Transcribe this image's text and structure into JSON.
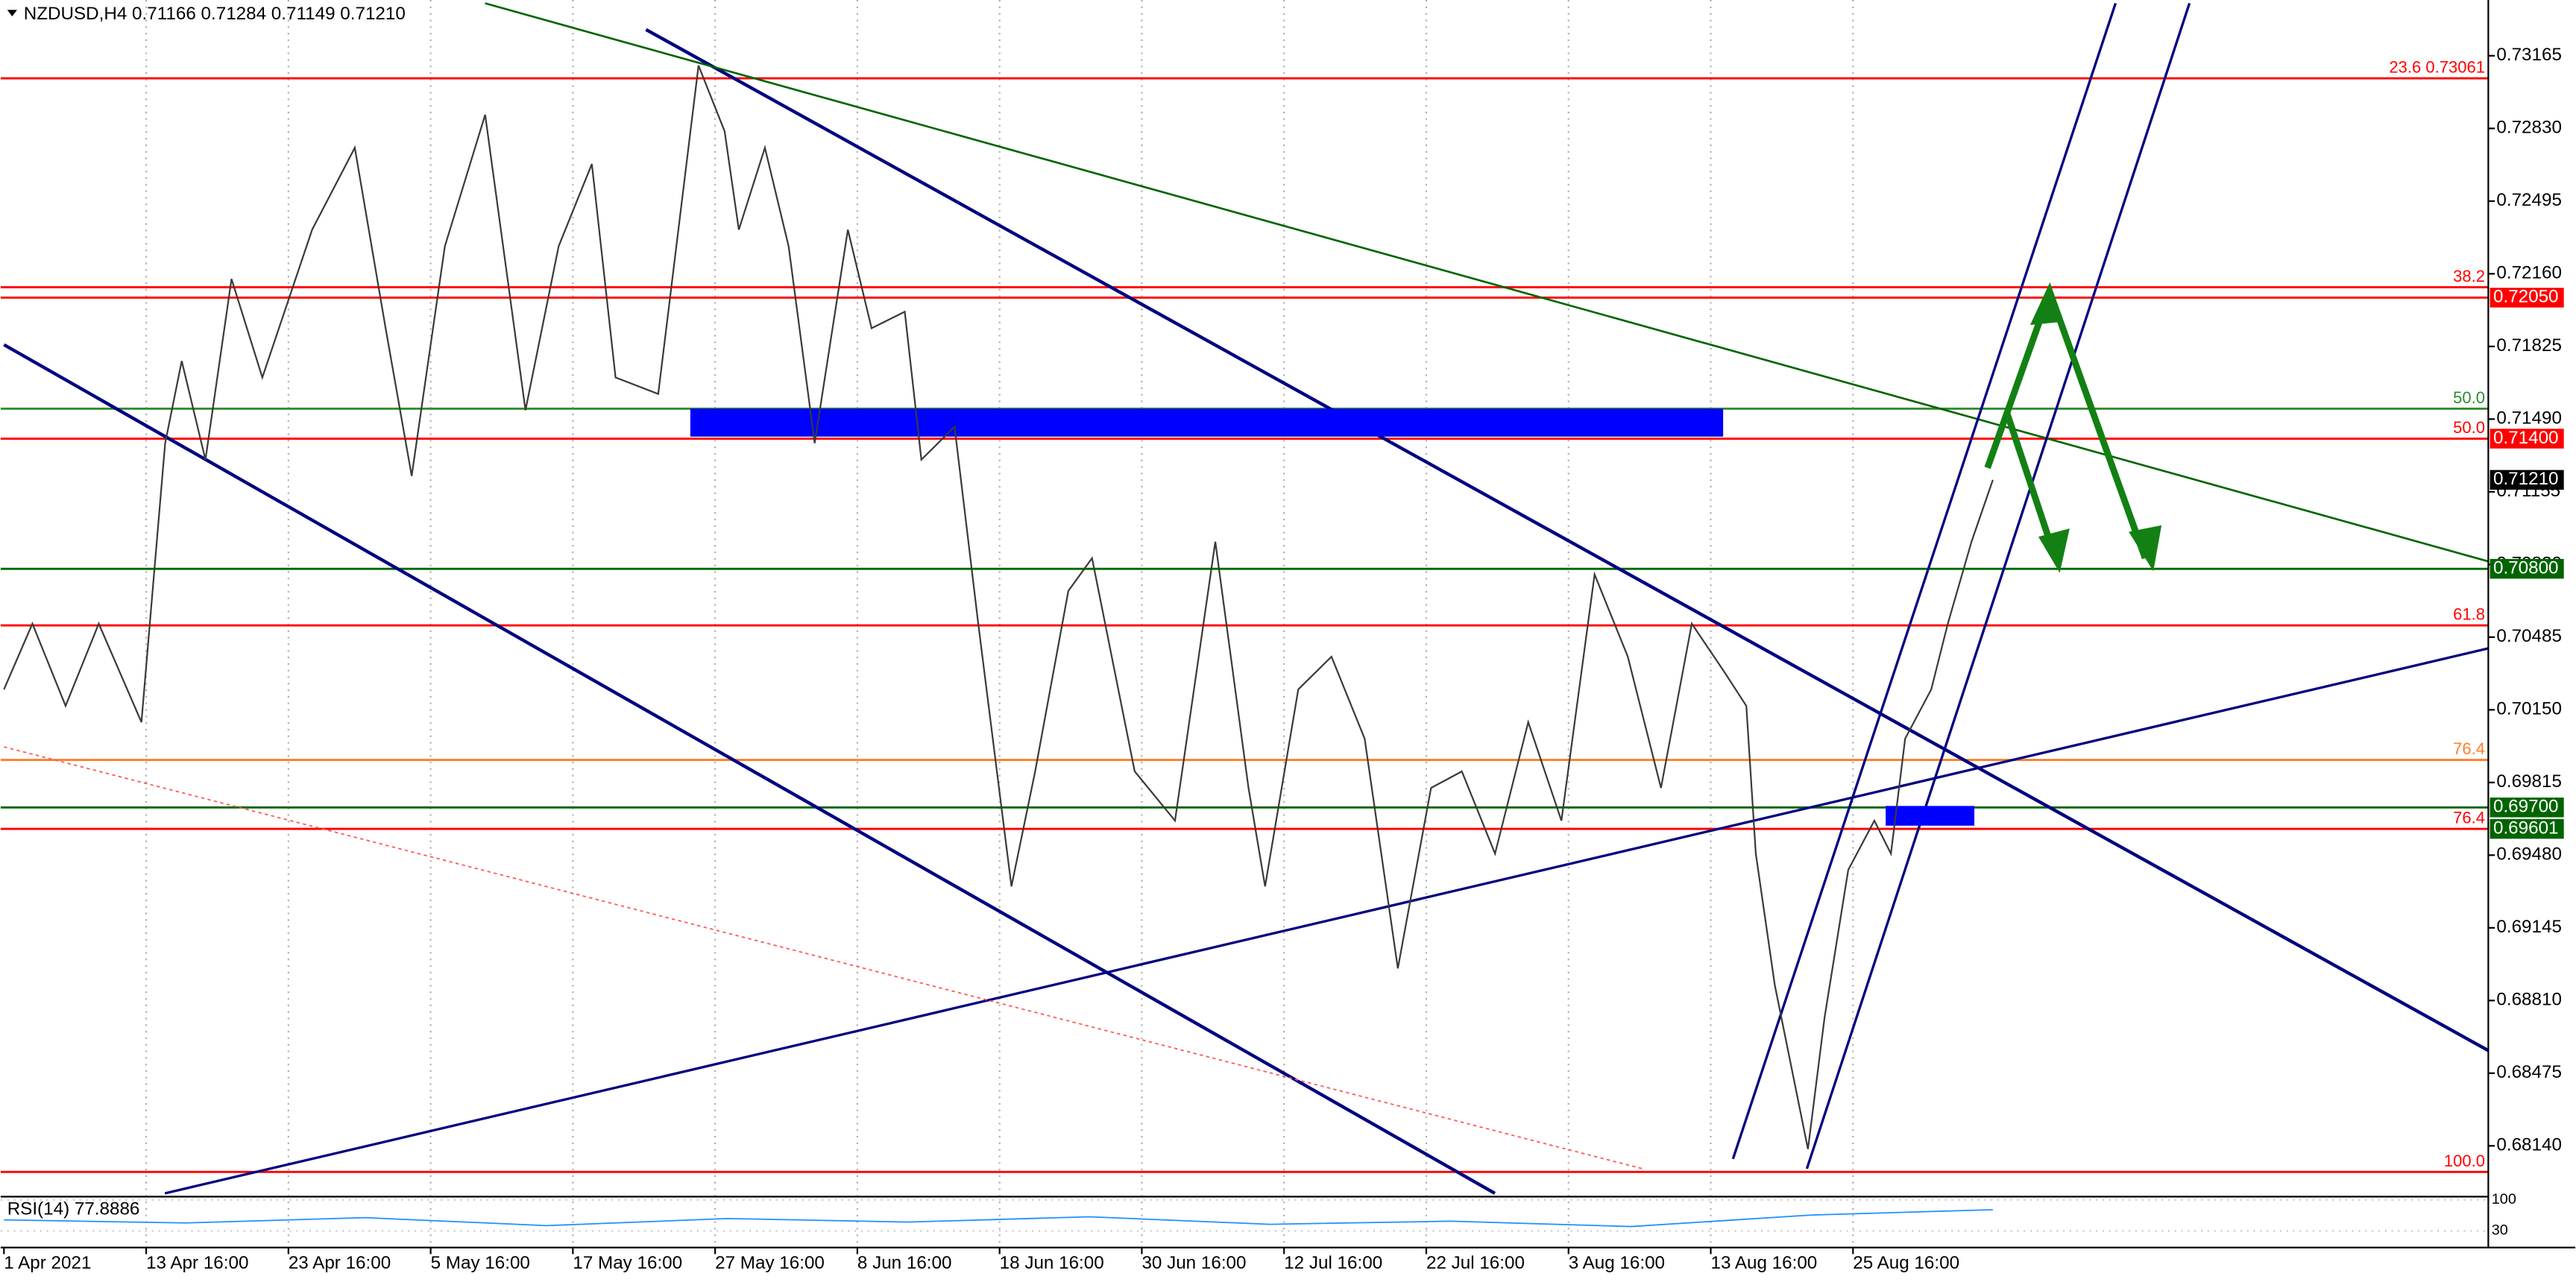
{
  "chart_data": {
    "type": "line",
    "title": "NZDUSD,H4  0.71166 0.71284 0.71149 0.71210",
    "color": "#3a3a3a",
    "x": [
      0,
      12,
      26,
      40,
      58,
      68,
      75,
      85,
      96,
      109,
      130,
      148,
      161,
      172,
      186,
      203,
      220,
      234,
      248,
      258,
      276,
      293,
      304,
      310,
      321,
      331,
      342,
      356,
      366,
      380,
      387,
      401,
      411,
      418,
      425,
      435,
      449,
      459,
      477,
      494,
      511,
      525,
      532,
      546,
      560,
      574,
      588,
      602,
      615,
      629,
      643,
      657,
      671,
      685,
      699,
      712,
      726,
      735,
      739,
      747,
      761,
      768,
      778,
      789,
      796,
      802,
      813,
      820,
      830,
      839
    ],
    "values": [
      0.70244,
      0.70547,
      0.70168,
      0.70547,
      0.70093,
      0.71379,
      0.71758,
      0.71303,
      0.72136,
      0.71682,
      0.72363,
      0.72741,
      0.71909,
      0.71228,
      0.72287,
      0.72893,
      0.71531,
      0.72287,
      0.72666,
      0.71682,
      0.71606,
      0.7312,
      0.72817,
      0.72363,
      0.72741,
      0.72287,
      0.71379,
      0.72363,
      0.71909,
      0.71985,
      0.71303,
      0.71455,
      0.70547,
      0.69941,
      0.69336,
      0.69866,
      0.70698,
      0.70849,
      0.69866,
      0.69639,
      0.70925,
      0.6979,
      0.69336,
      0.70244,
      0.70395,
      0.70017,
      0.68958,
      0.6979,
      0.69866,
      0.69487,
      0.70093,
      0.69639,
      0.70774,
      0.70395,
      0.6979,
      0.70547,
      0.7032,
      0.70168,
      0.69487,
      0.68882,
      0.68125,
      0.68731,
      0.69412,
      0.69639,
      0.69487,
      0.70017,
      0.70244,
      0.70547,
      0.70925,
      0.7121
    ],
    "xlim": [
      0,
      1048
    ],
    "xticks": [
      {
        "value": 0,
        "label": "1 Apr 2021"
      },
      {
        "value": 60,
        "label": "13 Apr 16:00"
      },
      {
        "value": 120,
        "label": "23 Apr 16:00"
      },
      {
        "value": 180,
        "label": "5 May 16:00"
      },
      {
        "value": 240,
        "label": "17 May 16:00"
      },
      {
        "value": 300,
        "label": "27 May 16:00"
      },
      {
        "value": 360,
        "label": "8 Jun 16:00"
      },
      {
        "value": 420,
        "label": "18 Jun 16:00"
      },
      {
        "value": 480,
        "label": "30 Jun 16:00"
      },
      {
        "value": 540,
        "label": "12 Jul 16:00"
      },
      {
        "value": 600,
        "label": "22 Jul 16:00"
      },
      {
        "value": 660,
        "label": "3 Aug 16:00"
      },
      {
        "value": 720,
        "label": "13 Aug 16:00"
      },
      {
        "value": 780,
        "label": "25 Aug 16:00"
      }
    ],
    "ylim": [
      0.67921,
      0.73422
    ],
    "yticks": [
      0.73165,
      {
        "value": 0.7283,
        "label": "0.72830"
      },
      0.72495,
      {
        "value": 0.7216,
        "label": "0.72160"
      },
      0.71825,
      {
        "value": 0.7149,
        "label": "0.71490"
      },
      0.71155,
      {
        "value": 0.7082,
        "label": "0.70820"
      },
      0.70485,
      {
        "value": 0.7015,
        "label": "0.70150"
      },
      0.69815,
      {
        "value": 0.6948,
        "label": "0.69480"
      },
      0.69145,
      {
        "value": 0.6881,
        "label": "0.68810"
      },
      0.68475,
      {
        "value": 0.6814,
        "label": "0.68140"
      }
    ],
    "grid": true,
    "levels": [
      {
        "price": 0.73061,
        "color": "#ff0000",
        "label": "23.6 0.73061"
      },
      {
        "price": 0.72098,
        "color": "#ff0000",
        "label": "38.2"
      },
      {
        "price": 0.7205,
        "color": "#ff0000"
      },
      {
        "price": 0.71538,
        "color": "#2e8b2e",
        "label": "50.0"
      },
      {
        "price": 0.714,
        "color": "#ff0000",
        "label": "50.0"
      },
      {
        "price": 0.708,
        "color": "#006400"
      },
      {
        "price": 0.70539,
        "color": "#ff0000",
        "label": "61.8"
      },
      {
        "price": 0.69919,
        "color": "#ff7f27",
        "label": "76.4"
      },
      {
        "price": 0.697,
        "color": "#006400"
      },
      {
        "price": 0.69601,
        "color": "#ff0000",
        "label": "76.4"
      },
      {
        "price": 0.6802,
        "color": "#ff0000",
        "label": "100.0"
      }
    ],
    "price_tags": [
      {
        "value": 0.7205,
        "label": "0.72050",
        "color": "#ff0000"
      },
      {
        "value": 0.714,
        "label": "0.71400",
        "color": "#ff0000"
      },
      {
        "value": 0.7121,
        "label": "0.71210",
        "color": "#000000"
      },
      {
        "value": 0.708,
        "label": "0.70800",
        "color": "#006400"
      },
      {
        "value": 0.697,
        "label": "0.69700",
        "color": "#006400"
      },
      {
        "value": 0.69601,
        "label": "0.69601",
        "color": "#006400"
      }
    ],
    "rsi": {
      "label": "RSI(14) 77.8886",
      "color": "#1e90ff",
      "values": [
        55,
        48,
        60,
        42,
        58,
        50,
        62,
        45,
        52,
        40,
        66,
        77.8886
      ],
      "ylim": [
        0,
        100
      ],
      "yticks": [
        100,
        30
      ]
    }
  }
}
